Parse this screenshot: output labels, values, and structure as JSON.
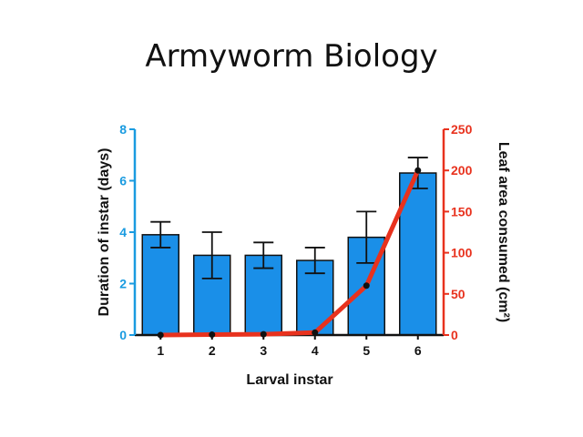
{
  "slide": {
    "title": "Armyworm Biology"
  },
  "chart_data": {
    "type": "bar",
    "title": "Armyworm Biology",
    "xlabel": "Larval instar",
    "ylabel": "Duration of instar (days)",
    "y2label": "Leaf area consumed (cm²)",
    "categories": [
      "1",
      "2",
      "3",
      "4",
      "5",
      "6"
    ],
    "ylim": [
      0,
      8
    ],
    "yticks": [
      0,
      2,
      4,
      6,
      8
    ],
    "y2lim": [
      0,
      250
    ],
    "y2ticks": [
      0,
      50,
      100,
      150,
      200,
      250
    ],
    "grid": false,
    "series": [
      {
        "type": "bar",
        "axis": "left",
        "values": [
          3.9,
          3.1,
          3.1,
          2.9,
          3.8,
          6.3
        ],
        "errors": [
          0.5,
          0.9,
          0.5,
          0.5,
          1.0,
          0.6
        ],
        "color": "#1a8fe8"
      },
      {
        "type": "line",
        "axis": "right",
        "values": [
          0,
          0.5,
          1,
          3,
          60,
          200
        ],
        "color": "#e8321e"
      }
    ],
    "colors": {
      "left_axis": "#1a9be0",
      "right_axis": "#e8321e"
    }
  }
}
